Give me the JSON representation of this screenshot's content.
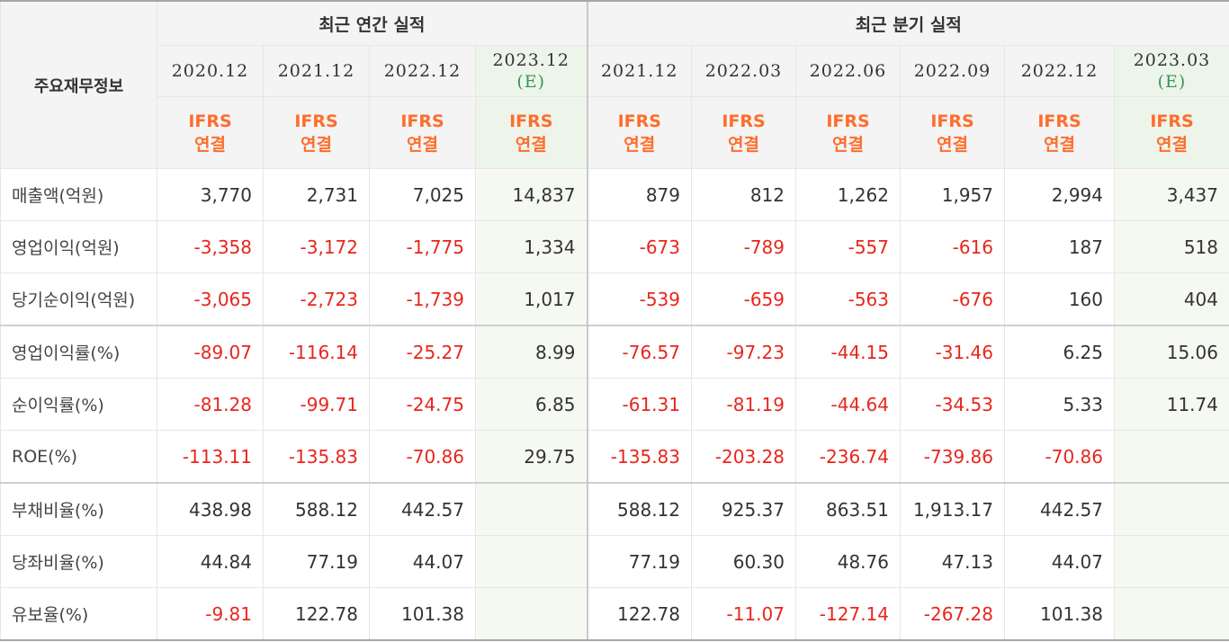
{
  "header": {
    "corner_label": "주요재무정보",
    "annual_group": "최근 연간 실적",
    "quarter_group": "최근 분기 실적",
    "annual_periods": [
      {
        "date": "2020.12",
        "est": ""
      },
      {
        "date": "2021.12",
        "est": ""
      },
      {
        "date": "2022.12",
        "est": ""
      },
      {
        "date": "2023.12",
        "est": "(E)"
      }
    ],
    "quarter_periods": [
      {
        "date": "2021.12",
        "est": ""
      },
      {
        "date": "2022.03",
        "est": ""
      },
      {
        "date": "2022.06",
        "est": ""
      },
      {
        "date": "2022.09",
        "est": ""
      },
      {
        "date": "2022.12",
        "est": ""
      },
      {
        "date": "2023.03",
        "est": "(E)"
      }
    ],
    "ifrs": {
      "line1": "IFRS",
      "line2": "연결"
    }
  },
  "rows": [
    {
      "label": "매출액(억원)",
      "annual": [
        "3,770",
        "2,731",
        "7,025",
        "14,837"
      ],
      "quarter": [
        "879",
        "812",
        "1,262",
        "1,957",
        "2,994",
        "3,437"
      ]
    },
    {
      "label": "영업이익(억원)",
      "annual": [
        "-3,358",
        "-3,172",
        "-1,775",
        "1,334"
      ],
      "quarter": [
        "-673",
        "-789",
        "-557",
        "-616",
        "187",
        "518"
      ]
    },
    {
      "label": "당기순이익(억원)",
      "annual": [
        "-3,065",
        "-2,723",
        "-1,739",
        "1,017"
      ],
      "quarter": [
        "-539",
        "-659",
        "-563",
        "-676",
        "160",
        "404"
      ]
    },
    {
      "label": "영업이익률(%)",
      "annual": [
        "-89.07",
        "-116.14",
        "-25.27",
        "8.99"
      ],
      "quarter": [
        "-76.57",
        "-97.23",
        "-44.15",
        "-31.46",
        "6.25",
        "15.06"
      ]
    },
    {
      "label": "순이익률(%)",
      "annual": [
        "-81.28",
        "-99.71",
        "-24.75",
        "6.85"
      ],
      "quarter": [
        "-61.31",
        "-81.19",
        "-44.64",
        "-34.53",
        "5.33",
        "11.74"
      ]
    },
    {
      "label": "ROE(%)",
      "annual": [
        "-113.11",
        "-135.83",
        "-70.86",
        "29.75"
      ],
      "quarter": [
        "-135.83",
        "-203.28",
        "-236.74",
        "-739.86",
        "-70.86",
        ""
      ]
    },
    {
      "label": "부채비율(%)",
      "annual": [
        "438.98",
        "588.12",
        "442.57",
        ""
      ],
      "quarter": [
        "588.12",
        "925.37",
        "863.51",
        "1,913.17",
        "442.57",
        ""
      ]
    },
    {
      "label": "당좌비율(%)",
      "annual": [
        "44.84",
        "77.19",
        "44.07",
        ""
      ],
      "quarter": [
        "77.19",
        "60.30",
        "48.76",
        "47.13",
        "44.07",
        ""
      ]
    },
    {
      "label": "유보율(%)",
      "annual": [
        "-9.81",
        "122.78",
        "101.38",
        ""
      ],
      "quarter": [
        "122.78",
        "-11.07",
        "-127.14",
        "-267.28",
        "101.38",
        ""
      ]
    }
  ],
  "colors": {
    "negative": "#e8261d",
    "ifrs": "#ff6d2b",
    "estimate_label": "#37955a",
    "estimate_bg": "#f5f9f1"
  }
}
